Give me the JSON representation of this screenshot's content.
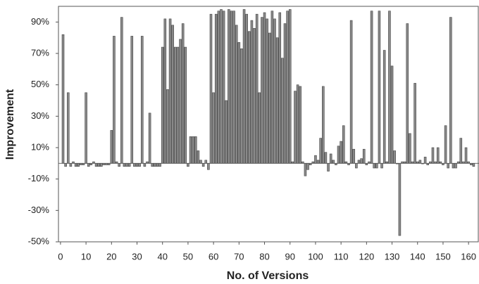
{
  "chart_data": {
    "type": "bar",
    "x_label": "No. of Versions",
    "y_label": "Improvement",
    "color": "#8a8a8a",
    "xlim": [
      -0.8,
      164.1
    ],
    "ylim": [
      -50,
      100
    ],
    "xticks": [
      0,
      10,
      20,
      30,
      40,
      50,
      60,
      70,
      80,
      90,
      100,
      110,
      120,
      130,
      140,
      150,
      160
    ],
    "yticks": [
      {
        "value": -50,
        "label": "-50%"
      },
      {
        "value": -30,
        "label": "-30%"
      },
      {
        "value": -10,
        "label": "-10%"
      },
      {
        "value": 10,
        "label": "10%"
      },
      {
        "value": 30,
        "label": "30%"
      },
      {
        "value": 50,
        "label": "50%"
      },
      {
        "value": 70,
        "label": "70%"
      },
      {
        "value": 90,
        "label": "90%"
      }
    ],
    "grid": false,
    "x": [
      1,
      2,
      3,
      4,
      5,
      6,
      7,
      8,
      9,
      10,
      11,
      12,
      13,
      14,
      15,
      16,
      17,
      18,
      19,
      20,
      21,
      22,
      23,
      24,
      25,
      26,
      27,
      28,
      29,
      30,
      31,
      32,
      33,
      34,
      35,
      36,
      37,
      38,
      39,
      40,
      41,
      42,
      43,
      44,
      45,
      46,
      47,
      48,
      49,
      50,
      51,
      52,
      53,
      54,
      55,
      56,
      57,
      58,
      59,
      60,
      61,
      62,
      63,
      64,
      65,
      66,
      67,
      68,
      69,
      70,
      71,
      72,
      73,
      74,
      75,
      76,
      77,
      78,
      79,
      80,
      81,
      82,
      83,
      84,
      85,
      86,
      87,
      88,
      89,
      90,
      91,
      92,
      93,
      94,
      95,
      96,
      97,
      98,
      99,
      100,
      101,
      102,
      103,
      104,
      105,
      106,
      107,
      108,
      109,
      110,
      111,
      112,
      113,
      114,
      115,
      116,
      117,
      118,
      119,
      120,
      121,
      122,
      123,
      124,
      125,
      126,
      127,
      128,
      129,
      130,
      131,
      132,
      133,
      134,
      135,
      136,
      137,
      138,
      139,
      140,
      141,
      142,
      143,
      144,
      145,
      146,
      147,
      148,
      149,
      150,
      151,
      152,
      153,
      154,
      155,
      156,
      157,
      158,
      159,
      160,
      161,
      162
    ],
    "values": [
      82,
      -2,
      45,
      -2,
      1,
      -2,
      -2,
      -1,
      -1,
      45,
      -2,
      -1,
      1,
      -2,
      -2,
      -2,
      -1,
      -1,
      -1,
      21,
      81,
      1,
      -2,
      93,
      -2,
      -2,
      -2,
      81,
      -2,
      -2,
      -2,
      81,
      -2,
      1,
      32,
      -2,
      -2,
      -2,
      -2,
      74,
      92,
      47,
      92,
      88,
      74,
      74,
      79,
      89,
      74,
      -2,
      17,
      17,
      17,
      8,
      2,
      -2,
      2,
      -4,
      95,
      45,
      95,
      97,
      98,
      97,
      40,
      98,
      97,
      97,
      88,
      77,
      73,
      98,
      95,
      84,
      91,
      86,
      95,
      45,
      93,
      96,
      92,
      83,
      97,
      92,
      80,
      96,
      67,
      89,
      97,
      98,
      1,
      46,
      50,
      49,
      1,
      -8,
      -4,
      -1,
      1,
      5,
      2,
      16,
      49,
      7,
      -5,
      6,
      2,
      -1,
      11,
      14,
      24,
      1,
      -1,
      91,
      9,
      -3,
      2,
      3,
      9,
      -1,
      1,
      97,
      -3,
      -3,
      97,
      -3,
      72,
      1,
      97,
      62,
      8,
      0,
      -46,
      1,
      1,
      89,
      19,
      1,
      51,
      1,
      2,
      0,
      4,
      -1,
      1,
      10,
      1,
      10,
      1,
      -1,
      24,
      -3,
      93,
      -3,
      -3,
      1,
      16,
      1,
      10,
      1,
      -1,
      -2
    ]
  }
}
